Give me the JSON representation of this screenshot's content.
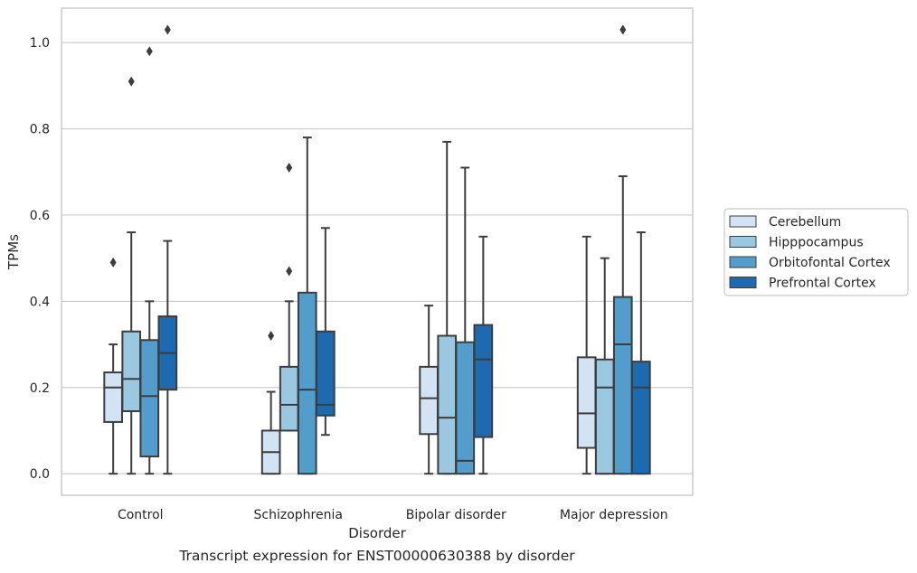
{
  "caption": "Transcript expression for ENST00000630388 by disorder",
  "chart_data": {
    "type": "box",
    "title": "",
    "xlabel": "Disorder",
    "ylabel": "TPMs",
    "ylim": [
      -0.05,
      1.08
    ],
    "yticks": [
      "0.0",
      "0.2",
      "0.4",
      "0.6",
      "0.8",
      "1.0"
    ],
    "grid": "horizontal",
    "legend_position": "right",
    "categories": [
      "Control",
      "Schizophrenia",
      "Bipolar disorder",
      "Major depression"
    ],
    "series": [
      {
        "name": "Cerebellum",
        "color": "#d2e3f3",
        "boxes": [
          {
            "whislo": 0.0,
            "q1": 0.12,
            "med": 0.2,
            "q3": 0.235,
            "whishi": 0.3,
            "fliers": [
              0.49
            ]
          },
          {
            "whislo": 0.0,
            "q1": 0.0,
            "med": 0.05,
            "q3": 0.1,
            "whishi": 0.19,
            "fliers": [
              0.32
            ]
          },
          {
            "whislo": 0.0,
            "q1": 0.092,
            "med": 0.175,
            "q3": 0.248,
            "whishi": 0.39,
            "fliers": []
          },
          {
            "whislo": 0.0,
            "q1": 0.06,
            "med": 0.14,
            "q3": 0.27,
            "whishi": 0.55,
            "fliers": []
          }
        ]
      },
      {
        "name": "Hipppocampus",
        "color": "#9ac8e1",
        "boxes": [
          {
            "whislo": 0.0,
            "q1": 0.145,
            "med": 0.22,
            "q3": 0.33,
            "whishi": 0.56,
            "fliers": [
              0.91
            ]
          },
          {
            "whislo": 0.1,
            "q1": 0.1,
            "med": 0.16,
            "q3": 0.248,
            "whishi": 0.4,
            "fliers": [
              0.47,
              0.71
            ]
          },
          {
            "whislo": 0.0,
            "q1": 0.0,
            "med": 0.13,
            "q3": 0.32,
            "whishi": 0.77,
            "fliers": []
          },
          {
            "whislo": 0.0,
            "q1": 0.0,
            "med": 0.2,
            "q3": 0.265,
            "whishi": 0.5,
            "fliers": []
          }
        ]
      },
      {
        "name": "Orbitofontal Cortex",
        "color": "#529dcc",
        "boxes": [
          {
            "whislo": 0.0,
            "q1": 0.04,
            "med": 0.18,
            "q3": 0.31,
            "whishi": 0.4,
            "fliers": [
              0.98
            ]
          },
          {
            "whislo": 0.0,
            "q1": 0.0,
            "med": 0.195,
            "q3": 0.42,
            "whishi": 0.78,
            "fliers": []
          },
          {
            "whislo": 0.0,
            "q1": 0.0,
            "med": 0.03,
            "q3": 0.305,
            "whishi": 0.71,
            "fliers": []
          },
          {
            "whislo": 0.0,
            "q1": 0.0,
            "med": 0.3,
            "q3": 0.41,
            "whishi": 0.69,
            "fliers": [
              1.03
            ]
          }
        ]
      },
      {
        "name": "Prefrontal Cortex",
        "color": "#1c6aaf",
        "boxes": [
          {
            "whislo": 0.0,
            "q1": 0.195,
            "med": 0.28,
            "q3": 0.365,
            "whishi": 0.54,
            "fliers": [
              1.03
            ]
          },
          {
            "whislo": 0.09,
            "q1": 0.135,
            "med": 0.16,
            "q3": 0.33,
            "whishi": 0.57,
            "fliers": []
          },
          {
            "whislo": 0.0,
            "q1": 0.085,
            "med": 0.265,
            "q3": 0.345,
            "whishi": 0.55,
            "fliers": []
          },
          {
            "whislo": 0.0,
            "q1": 0.0,
            "med": 0.2,
            "q3": 0.26,
            "whishi": 0.56,
            "fliers": []
          }
        ]
      }
    ]
  }
}
